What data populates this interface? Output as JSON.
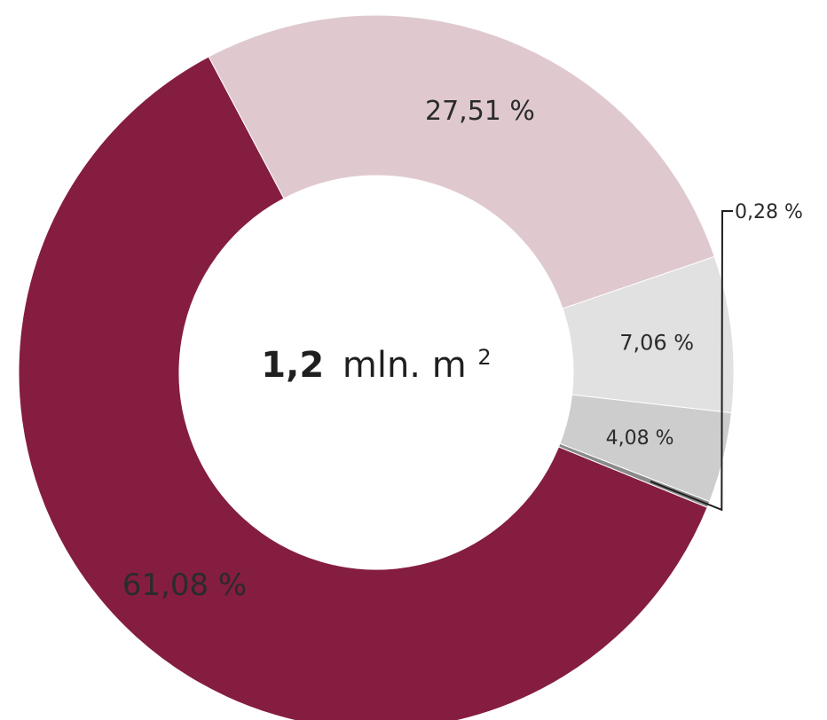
{
  "chart_data": {
    "type": "pie",
    "donut": true,
    "center_label": {
      "value": "1,2",
      "unit": "mln. m",
      "superscript": "2"
    },
    "slices": [
      {
        "label": "61,08  %",
        "value": 61.08,
        "color": "#851d40",
        "text_color": "#ffffff"
      },
      {
        "label": "27,51 %",
        "value": 27.51,
        "color": "#dfc9cf",
        "text_color": "#2b2b2b"
      },
      {
        "label": "7,06 %",
        "value": 7.06,
        "color": "#e1e1e1",
        "text_color": "#2b2b2b"
      },
      {
        "label": "4,08 %",
        "value": 4.08,
        "color": "#cdcdcd",
        "text_color": "#2b2b2b"
      },
      {
        "label": "0,28 %",
        "value": 0.28,
        "color": "#8a8a8a",
        "text_color": "#2b2b2b"
      }
    ]
  }
}
